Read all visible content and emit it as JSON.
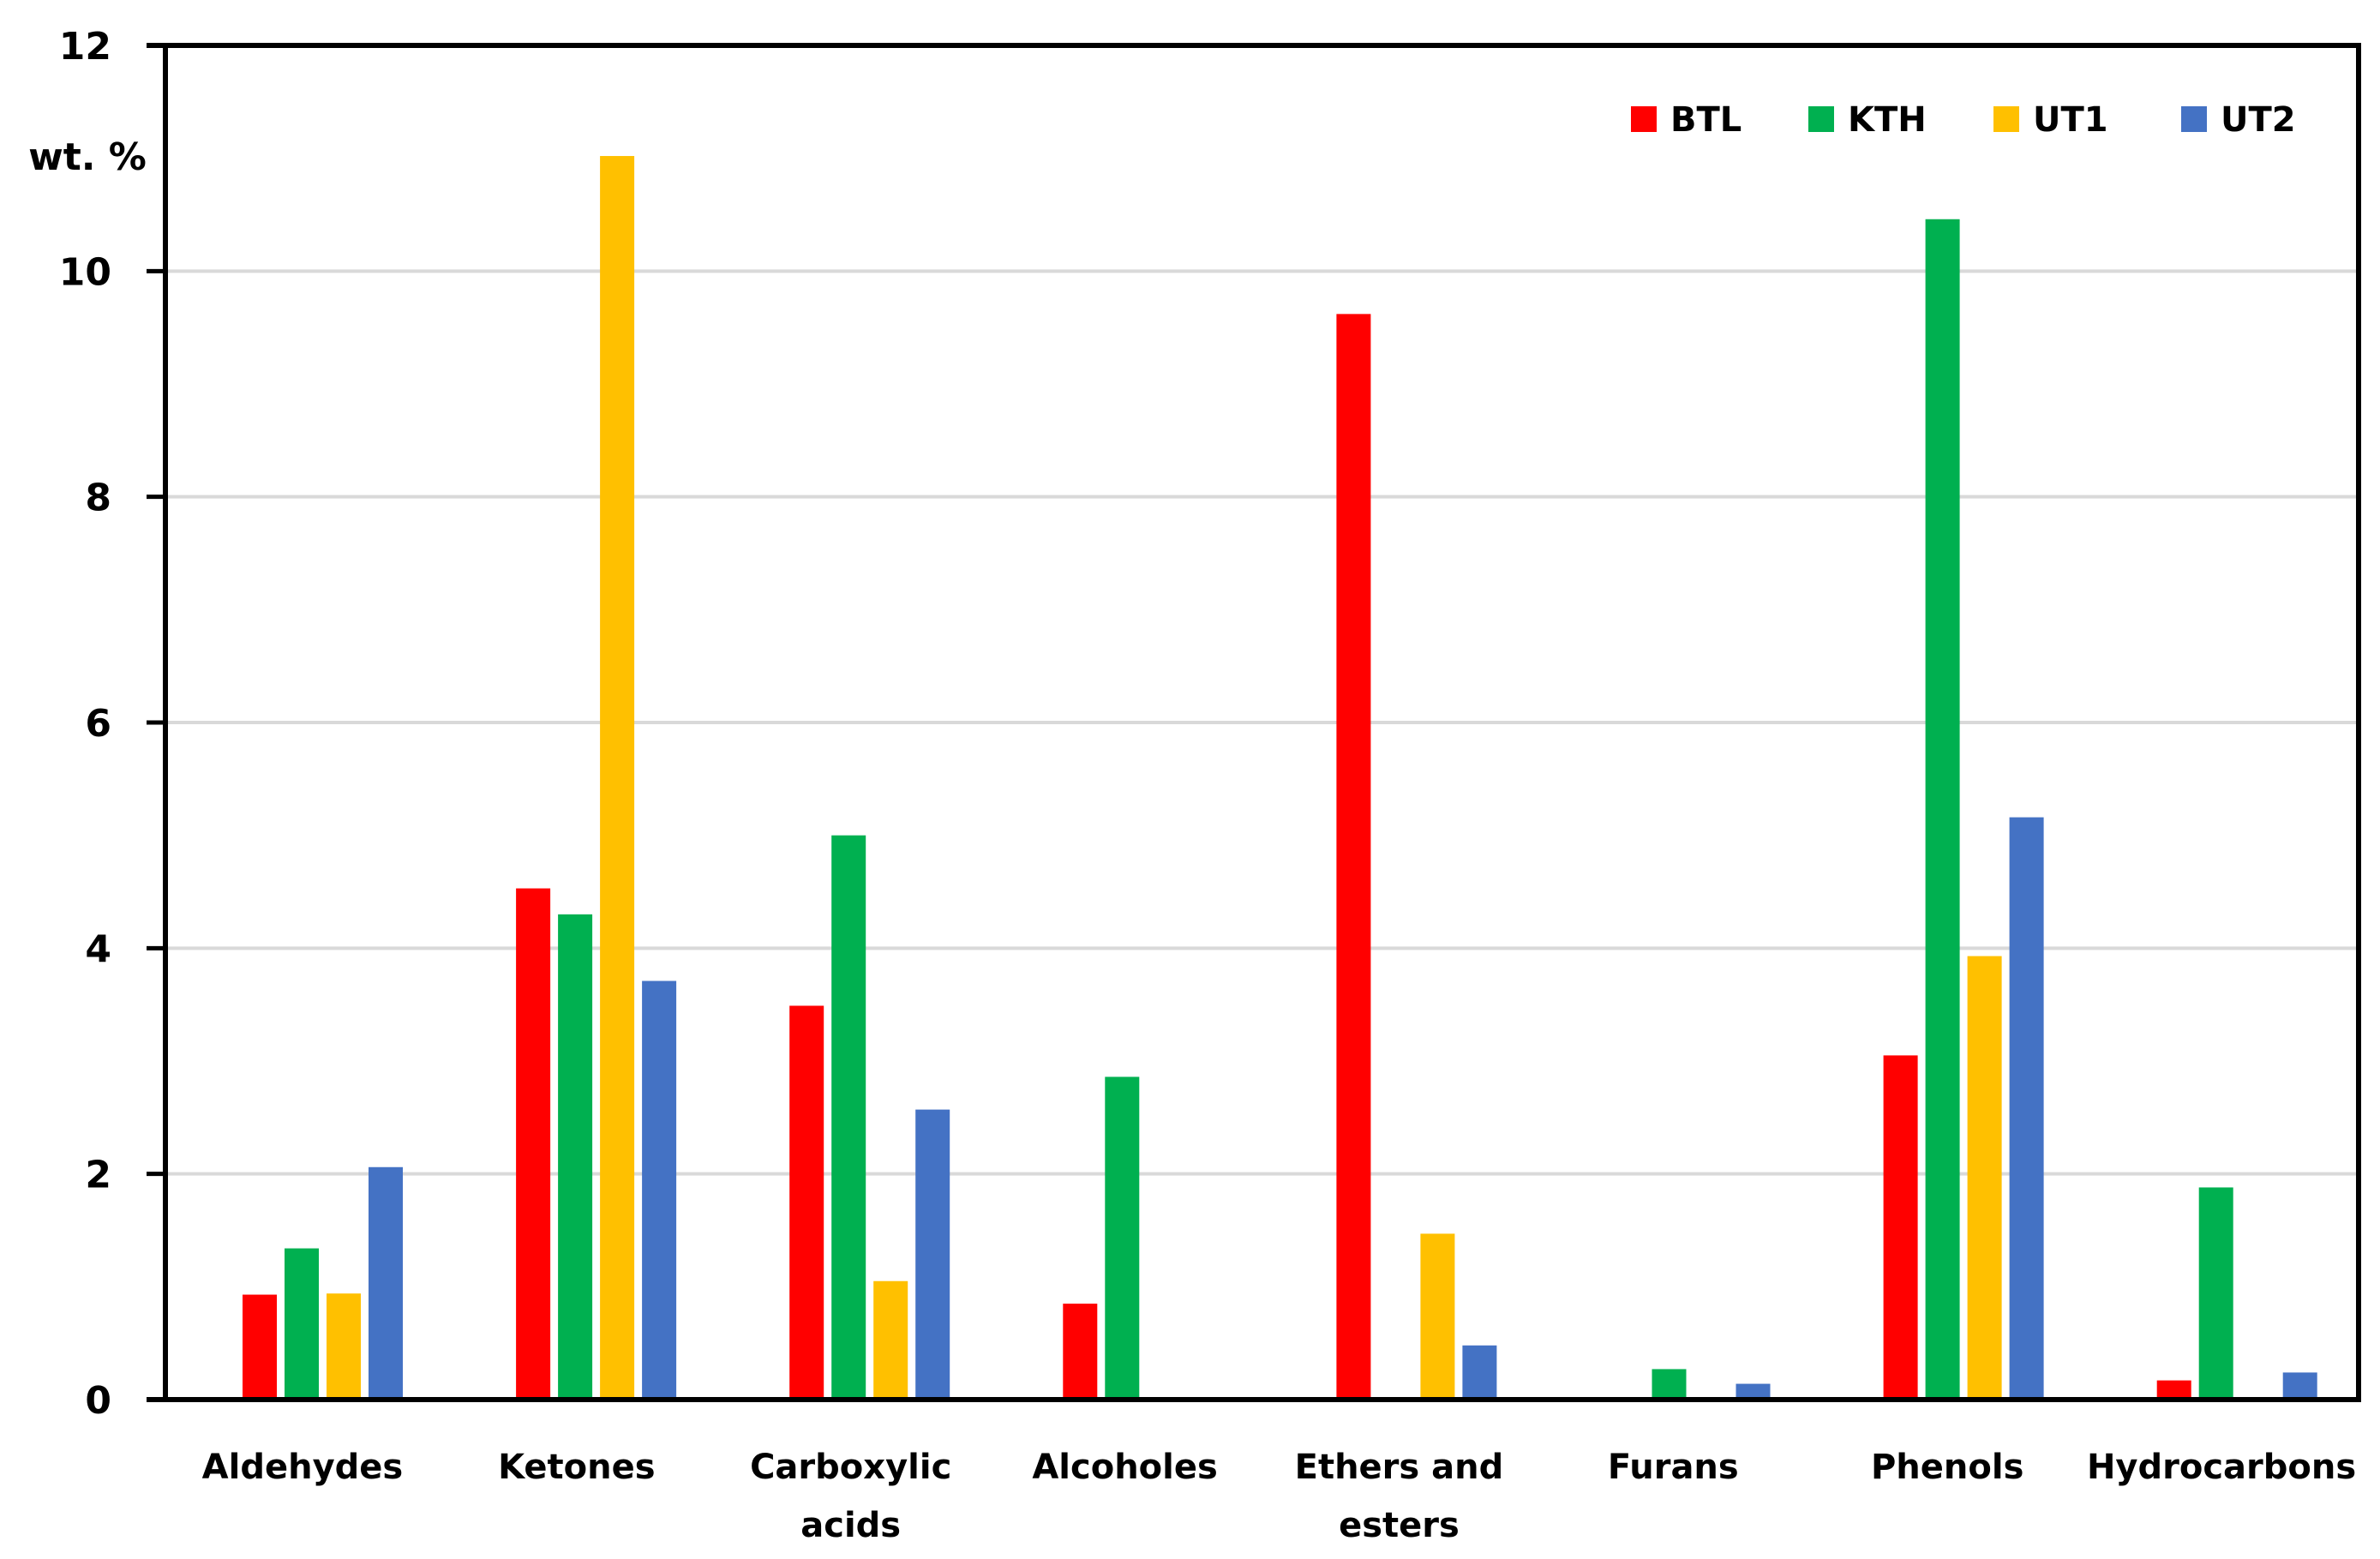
{
  "chart_data": {
    "type": "bar",
    "title": "",
    "xlabel": "",
    "ylabel": "wt. %",
    "ylim": [
      0,
      12
    ],
    "yticks": [
      0,
      2,
      4,
      6,
      8,
      10,
      12
    ],
    "grid": true,
    "legend_position": "top-right (inside plot)",
    "categories": [
      "Aldehydes",
      "Ketones",
      "Carboxylic acids",
      "Alcoholes",
      "Ethers and esters",
      "Furans",
      "Phenols",
      "Hydrocarbons"
    ],
    "category_lines": [
      [
        "Aldehydes"
      ],
      [
        "Ketones"
      ],
      [
        "Carboxylic",
        "acids"
      ],
      [
        "Alcoholes"
      ],
      [
        "Ethers and",
        "esters"
      ],
      [
        "Furans"
      ],
      [
        "Phenols"
      ],
      [
        "Hydrocarbons"
      ]
    ],
    "series": [
      {
        "name": "BTL",
        "color": "#FF0000",
        "values": [
          0.93,
          4.53,
          3.49,
          0.85,
          9.62,
          0,
          3.05,
          0.17
        ]
      },
      {
        "name": "KTH",
        "color": "#00B050",
        "values": [
          1.34,
          4.3,
          5.0,
          2.86,
          0,
          0.27,
          10.46,
          1.88
        ]
      },
      {
        "name": "UT1",
        "color": "#FFC000",
        "values": [
          0.94,
          11.02,
          1.05,
          0,
          1.47,
          0,
          3.93,
          0
        ]
      },
      {
        "name": "UT2",
        "color": "#4472C4",
        "values": [
          2.06,
          3.71,
          2.57,
          0,
          0.48,
          0.14,
          5.16,
          0.24
        ]
      }
    ]
  },
  "axis": {
    "ylabel": "wt. %",
    "tick_labels": [
      "0",
      "2",
      "4",
      "6",
      "8",
      "10",
      "12"
    ]
  },
  "colors": {
    "gridline": "#D9D9D9",
    "axis": "#000000"
  }
}
